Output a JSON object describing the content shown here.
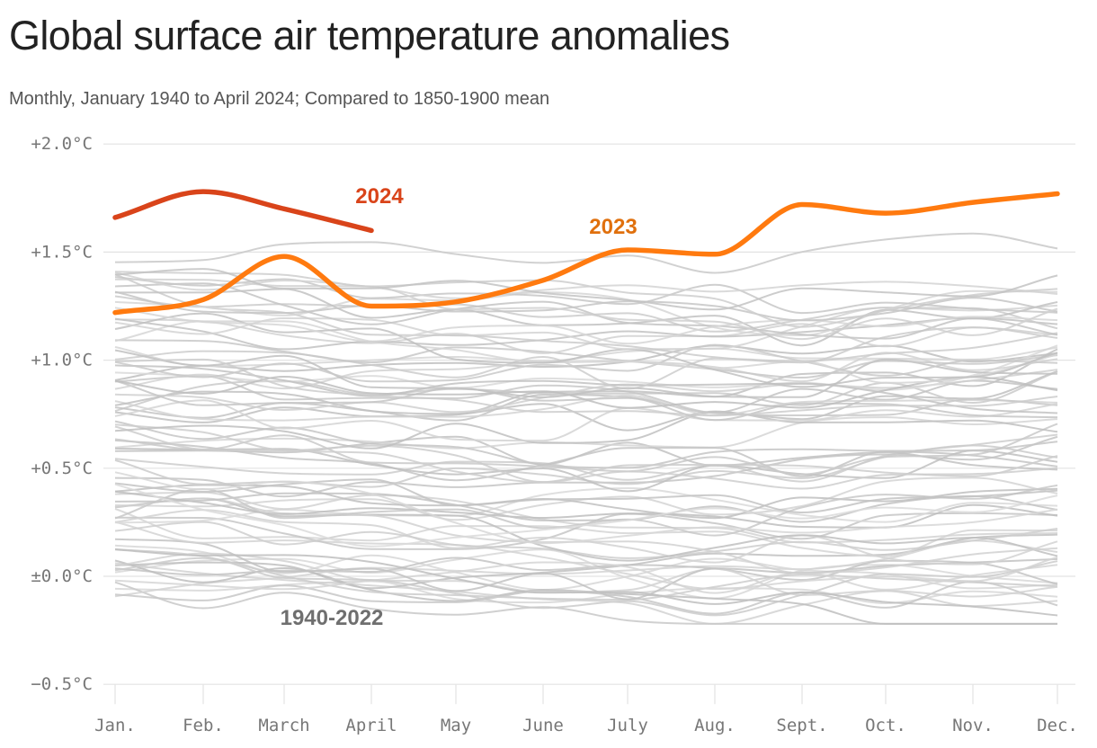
{
  "header": {
    "title": "Global surface air temperature anomalies",
    "subtitle": "Monthly, January 1940 to April 2024; Compared to 1850-1900 mean"
  },
  "colors": {
    "highlight_2024": "#d9441a",
    "highlight_2023": "#ff7a0f",
    "label_2023": "#e0700d",
    "history": "#c8c8c8",
    "history_label": "#6f6f6f",
    "grid": "#e3e3e3"
  },
  "chart_data": {
    "type": "line",
    "x_categories": [
      "Jan.",
      "Feb.",
      "March",
      "April",
      "May",
      "June",
      "July",
      "Aug.",
      "Sept.",
      "Oct.",
      "Nov.",
      "Dec."
    ],
    "y_ticks": [
      2.0,
      1.5,
      1.0,
      0.5,
      0.0,
      -0.5
    ],
    "y_tick_labels": [
      "+2.0°C",
      "+1.5°C",
      "+1.0°C",
      "+0.5°C",
      "±0.0°C",
      "−0.5°C"
    ],
    "ylim": [
      -0.5,
      2.0
    ],
    "grid": true,
    "series": [
      {
        "name": "2024",
        "values": [
          1.66,
          1.78,
          1.7,
          1.6
        ]
      },
      {
        "name": "2023",
        "values": [
          1.22,
          1.28,
          1.48,
          1.25,
          1.27,
          1.37,
          1.51,
          1.49,
          1.72,
          1.68,
          1.73,
          1.77
        ]
      }
    ],
    "background_series_label": "1940-2022",
    "background_series_count": 83,
    "background_range": {
      "min": -0.22,
      "max": 1.66
    }
  }
}
